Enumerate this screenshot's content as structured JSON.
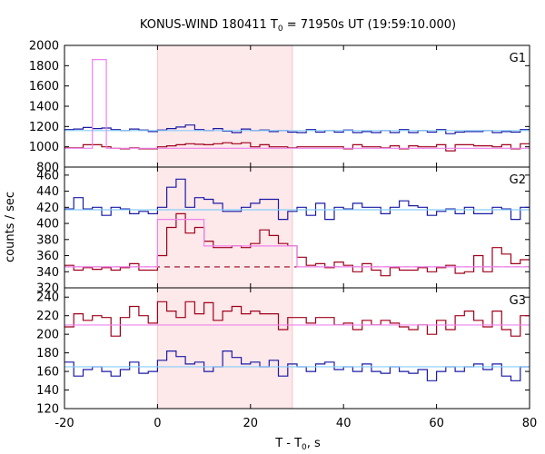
{
  "chart_data": {
    "type": "line",
    "title_main": "KONUS-WIND 180411 T",
    "title_sub": "0",
    "title_rest": " = 71950s UT (19:59:10.000)",
    "xlabel_main": "T - T",
    "xlabel_sub": "0",
    "xlabel_rest": ", s",
    "ylabel": "counts / sec",
    "xlim": [
      -20,
      80
    ],
    "x_ticks": [
      -20,
      0,
      20,
      40,
      60,
      80
    ],
    "highlight_interval": [
      0,
      29
    ],
    "colors": {
      "red": "#a0001a",
      "blue": "#1a1aa6",
      "cyan": "#87cefa",
      "pink": "#ee82ee",
      "shade": "#fde8ea"
    },
    "panels": [
      {
        "name": "G1",
        "ylim": [
          800,
          2000
        ],
        "y_ticks": [
          800,
          1000,
          1200,
          1400,
          1600,
          1800,
          2000
        ],
        "series": [
          {
            "color": "blue",
            "style": "step",
            "x": [
              -20,
              -18,
              -16,
              -14,
              -12,
              -10,
              -8,
              -6,
              -4,
              -2,
              0,
              2,
              4,
              6,
              8,
              10,
              12,
              14,
              16,
              18,
              20,
              22,
              24,
              26,
              28,
              30,
              32,
              34,
              36,
              38,
              40,
              42,
              44,
              46,
              48,
              50,
              52,
              54,
              56,
              58,
              60,
              62,
              64,
              66,
              68,
              70,
              72,
              74,
              76,
              78,
              80
            ],
            "y": [
              1170,
              1175,
              1190,
              1180,
              1185,
              1170,
              1160,
              1175,
              1165,
              1150,
              1165,
              1180,
              1195,
              1215,
              1170,
              1160,
              1180,
              1155,
              1140,
              1175,
              1160,
              1165,
              1150,
              1160,
              1145,
              1140,
              1170,
              1145,
              1160,
              1145,
              1165,
              1140,
              1150,
              1140,
              1160,
              1140,
              1170,
              1140,
              1160,
              1145,
              1170,
              1130,
              1145,
              1150,
              1150,
              1160,
              1140,
              1150,
              1145,
              1170,
              1160
            ]
          },
          {
            "color": "cyan",
            "style": "flat",
            "y": 1160
          },
          {
            "color": "red",
            "style": "step",
            "x": [
              -20,
              -18,
              -16,
              -14,
              -12,
              -10,
              -8,
              -6,
              -4,
              -2,
              0,
              2,
              4,
              6,
              8,
              10,
              12,
              14,
              16,
              18,
              20,
              22,
              24,
              26,
              28,
              30,
              32,
              34,
              36,
              38,
              40,
              42,
              44,
              46,
              48,
              50,
              52,
              54,
              56,
              58,
              60,
              62,
              64,
              66,
              68,
              70,
              72,
              74,
              76,
              78,
              80
            ],
            "y": [
              990,
              990,
              1020,
              1020,
              1000,
              985,
              980,
              990,
              980,
              980,
              1000,
              1010,
              1020,
              1030,
              1025,
              1020,
              1030,
              1040,
              1030,
              1040,
              1000,
              1020,
              1000,
              1000,
              990,
              1000,
              1000,
              1000,
              1000,
              1000,
              980,
              1020,
              1000,
              1000,
              990,
              1010,
              980,
              1010,
              1000,
              1000,
              1020,
              960,
              1020,
              1020,
              1010,
              1010,
              1000,
              1020,
              980,
              1030,
              1020
            ]
          },
          {
            "color": "pink",
            "style": "segments",
            "points": [
              [
                -20,
                985
              ],
              [
                -14,
                985
              ],
              [
                -14,
                1860
              ],
              [
                -11,
                1860
              ],
              [
                -11,
                985
              ],
              [
                80,
                985
              ]
            ]
          }
        ]
      },
      {
        "name": "G2",
        "ylim": [
          320,
          470
        ],
        "y_ticks": [
          320,
          340,
          360,
          380,
          400,
          420,
          440,
          460
        ],
        "series": [
          {
            "color": "blue",
            "style": "step",
            "x": [
              -20,
              -18,
              -16,
              -14,
              -12,
              -10,
              -8,
              -6,
              -4,
              -2,
              0,
              2,
              4,
              6,
              8,
              10,
              12,
              14,
              16,
              18,
              20,
              22,
              24,
              26,
              28,
              30,
              32,
              34,
              36,
              38,
              40,
              42,
              44,
              46,
              48,
              50,
              52,
              54,
              56,
              58,
              60,
              62,
              64,
              66,
              68,
              70,
              72,
              74,
              76,
              78,
              80
            ],
            "y": [
              418,
              432,
              418,
              420,
              410,
              420,
              418,
              412,
              415,
              412,
              420,
              445,
              455,
              420,
              432,
              430,
              425,
              415,
              415,
              420,
              425,
              430,
              430,
              405,
              415,
              420,
              410,
              425,
              405,
              420,
              418,
              425,
              420,
              420,
              412,
              420,
              428,
              422,
              420,
              410,
              415,
              418,
              412,
              420,
              412,
              412,
              420,
              418,
              405,
              420,
              418
            ]
          },
          {
            "color": "cyan",
            "style": "flat",
            "y": 417
          },
          {
            "color": "red",
            "style": "step",
            "x": [
              -20,
              -18,
              -16,
              -14,
              -12,
              -10,
              -8,
              -6,
              -4,
              -2,
              0,
              2,
              4,
              6,
              8,
              10,
              12,
              14,
              16,
              18,
              20,
              22,
              24,
              26,
              28,
              30,
              32,
              34,
              36,
              38,
              40,
              42,
              44,
              46,
              48,
              50,
              52,
              54,
              56,
              58,
              60,
              62,
              64,
              66,
              68,
              70,
              72,
              74,
              76,
              78,
              80
            ],
            "y": [
              348,
              342,
              345,
              343,
              345,
              342,
              345,
              350,
              342,
              342,
              360,
              395,
              412,
              388,
              395,
              378,
              370,
              370,
              372,
              370,
              375,
              392,
              385,
              375,
              372,
              358,
              348,
              350,
              345,
              352,
              348,
              340,
              350,
              342,
              335,
              345,
              342,
              342,
              345,
              340,
              345,
              348,
              338,
              340,
              360,
              340,
              370,
              362,
              350,
              355,
              350
            ]
          },
          {
            "color": "red",
            "style": "dashed",
            "y": 346
          },
          {
            "color": "pink",
            "style": "segments",
            "points": [
              [
                -20,
                346
              ],
              [
                0,
                346
              ],
              [
                0,
                405
              ],
              [
                10,
                405
              ],
              [
                10,
                372
              ],
              [
                30,
                372
              ],
              [
                30,
                346
              ],
              [
                80,
                346
              ]
            ]
          }
        ]
      },
      {
        "name": "G3",
        "ylim": [
          120,
          250
        ],
        "y_ticks": [
          120,
          140,
          160,
          180,
          200,
          220,
          240
        ],
        "series": [
          {
            "color": "red",
            "style": "step",
            "x": [
              -20,
              -18,
              -16,
              -14,
              -12,
              -10,
              -8,
              -6,
              -4,
              -2,
              0,
              2,
              4,
              6,
              8,
              10,
              12,
              14,
              16,
              18,
              20,
              22,
              24,
              26,
              28,
              30,
              32,
              34,
              36,
              38,
              40,
              42,
              44,
              46,
              48,
              50,
              52,
              54,
              56,
              58,
              60,
              62,
              64,
              66,
              68,
              70,
              72,
              74,
              76,
              78,
              80
            ],
            "y": [
              208,
              222,
              215,
              220,
              218,
              198,
              218,
              230,
              220,
              212,
              235,
              225,
              218,
              235,
              222,
              234,
              215,
              225,
              230,
              222,
              225,
              222,
              222,
              205,
              218,
              218,
              212,
              218,
              218,
              210,
              212,
              205,
              215,
              210,
              215,
              212,
              208,
              205,
              210,
              200,
              215,
              205,
              220,
              225,
              215,
              208,
              225,
              205,
              198,
              220,
              215
            ]
          },
          {
            "color": "pink",
            "style": "flat",
            "y": 210
          },
          {
            "color": "blue",
            "style": "step",
            "x": [
              -20,
              -18,
              -16,
              -14,
              -12,
              -10,
              -8,
              -6,
              -4,
              -2,
              0,
              2,
              4,
              6,
              8,
              10,
              12,
              14,
              16,
              18,
              20,
              22,
              24,
              26,
              28,
              30,
              32,
              34,
              36,
              38,
              40,
              42,
              44,
              46,
              48,
              50,
              52,
              54,
              56,
              58,
              60,
              62,
              64,
              66,
              68,
              70,
              72,
              74,
              76,
              78,
              80
            ],
            "y": [
              170,
              155,
              162,
              165,
              160,
              155,
              162,
              170,
              158,
              160,
              172,
              182,
              176,
              168,
              170,
              160,
              165,
              182,
              175,
              168,
              170,
              165,
              172,
              155,
              168,
              165,
              160,
              168,
              170,
              162,
              165,
              160,
              168,
              160,
              158,
              165,
              160,
              158,
              162,
              150,
              160,
              165,
              160,
              165,
              168,
              162,
              168,
              155,
              150,
              165,
              162
            ]
          },
          {
            "color": "cyan",
            "style": "flat",
            "y": 165
          }
        ]
      }
    ]
  }
}
